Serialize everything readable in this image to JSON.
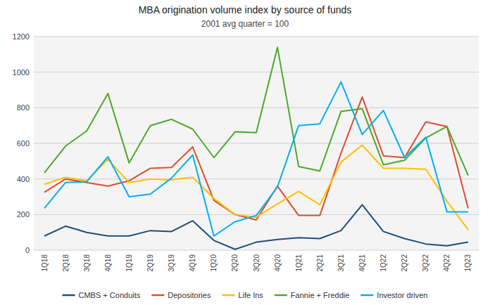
{
  "chart_data": {
    "type": "line",
    "title": "MBA origination volume index by source of funds",
    "subtitle": "2001 avg quarter = 100",
    "categories": [
      "1Q18",
      "2Q18",
      "3Q18",
      "4Q18",
      "1Q19",
      "2Q19",
      "3Q19",
      "4Q19",
      "1Q20",
      "2Q20",
      "3Q20",
      "4Q20",
      "1Q21",
      "2Q21",
      "3Q21",
      "4Q21",
      "1Q22",
      "2Q22",
      "3Q22",
      "4Q22",
      "1Q23"
    ],
    "series": [
      {
        "name": "CMBS + Conduits",
        "color": "#1f4e79",
        "values": [
          80,
          135,
          100,
          80,
          80,
          110,
          105,
          165,
          55,
          5,
          45,
          60,
          70,
          65,
          110,
          255,
          105,
          65,
          35,
          25,
          45
        ]
      },
      {
        "name": "Depositories",
        "color": "#e04c2f",
        "values": [
          325,
          400,
          380,
          360,
          390,
          460,
          465,
          580,
          280,
          200,
          170,
          360,
          195,
          195,
          545,
          860,
          530,
          520,
          720,
          695,
          235
        ]
      },
      {
        "name": "Life Ins",
        "color": "#ffc000",
        "values": [
          370,
          410,
          390,
          510,
          380,
          400,
          395,
          410,
          290,
          200,
          185,
          260,
          330,
          255,
          495,
          590,
          460,
          460,
          455,
          275,
          115
        ]
      },
      {
        "name": "Fannie + Freddie",
        "color": "#4ea72c",
        "values": [
          435,
          585,
          670,
          880,
          490,
          700,
          735,
          680,
          520,
          665,
          660,
          1140,
          470,
          445,
          780,
          795,
          480,
          505,
          630,
          695,
          420
        ]
      },
      {
        "name": "Investor driven",
        "color": "#00b0f0",
        "values": [
          235,
          380,
          385,
          525,
          300,
          315,
          405,
          535,
          80,
          160,
          195,
          355,
          700,
          710,
          945,
          650,
          785,
          520,
          635,
          215,
          215
        ]
      }
    ],
    "ylim": [
      0,
      1200
    ],
    "yticks": [
      0,
      200,
      400,
      600,
      800,
      1000,
      1200
    ],
    "grid": true,
    "legend": "bottom"
  }
}
